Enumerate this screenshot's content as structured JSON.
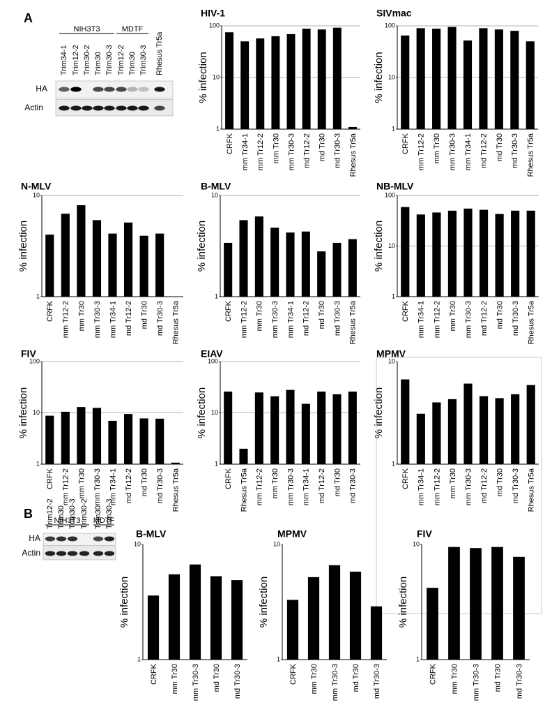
{
  "panel_labels": [
    "A",
    "B"
  ],
  "blots": [
    {
      "groups": [
        "NIH3T3",
        "MDTF"
      ],
      "lanes": [
        "Trim34-1",
        "Trim12-2",
        "Trim30-2",
        "Trim30",
        "Trim30-3",
        "Trim12-2",
        "Trim30",
        "Trim30-3",
        "Rhesus Tr5a"
      ],
      "rows": [
        "HA",
        "Actin"
      ]
    },
    {
      "groups": [
        "NIH3T3",
        "MDTF"
      ],
      "lanes": [
        "Trim12-2",
        "Trim30",
        "Trim30-3",
        "Trim30-2",
        "Trim30",
        "Trim30-3"
      ],
      "rows": [
        "HA",
        "Actin"
      ]
    }
  ],
  "chart_data": [
    {
      "type": "bar",
      "title": "HIV-1",
      "ylabel": "% infection",
      "log": true,
      "grid": true,
      "color": "#000000",
      "ylim": [
        1,
        100
      ],
      "yticks": [
        1,
        10,
        100
      ],
      "categories": [
        "CRFK",
        "mm Tr34-1",
        "mm Tr12-2",
        "mm Tr30",
        "mm Tr30-3",
        "md Tr12-2",
        "md Tr30",
        "md Tr30-3",
        "Rhesus Tr5a"
      ],
      "values": [
        75,
        50,
        57,
        63,
        69,
        88,
        85,
        92,
        1.1
      ]
    },
    {
      "type": "bar",
      "title": "SIVmac",
      "ylabel": "% infection",
      "log": true,
      "grid": true,
      "color": "#000000",
      "ylim": [
        1,
        100
      ],
      "yticks": [
        1,
        10,
        100
      ],
      "categories": [
        "CRFK",
        "mm Tr12-2",
        "mm Tr30",
        "mm Tr30-3",
        "mm Tr34-1",
        "md Tr12-2",
        "md Tr30",
        "md Tr30-3",
        "Rhesus Tr5a"
      ],
      "values": [
        65,
        90,
        88,
        95,
        52,
        90,
        85,
        80,
        50
      ]
    },
    {
      "type": "bar",
      "title": "N-MLV",
      "ylabel": "% infection",
      "log": true,
      "grid": true,
      "color": "#000000",
      "ylim": [
        1,
        10
      ],
      "yticks": [
        1,
        10
      ],
      "categories": [
        "CRFK",
        "mm Tr12-2",
        "mm Tr30",
        "mm Tr30-3",
        "mm Tr34-1",
        "md Tr12-2",
        "md Tr30",
        "md Tr30-3",
        "Rhesus Tr5a"
      ],
      "values": [
        4.1,
        6.6,
        8,
        5.7,
        4.2,
        5.4,
        4,
        4.2,
        1
      ]
    },
    {
      "type": "bar",
      "title": "B-MLV",
      "ylabel": "% infection",
      "log": true,
      "grid": true,
      "color": "#000000",
      "ylim": [
        1,
        10
      ],
      "yticks": [
        1,
        10
      ],
      "categories": [
        "CRFK",
        "mm Tr12-2",
        "mm Tr30",
        "mm Tr30-3",
        "mm Tr34-1",
        "md Tr12-2",
        "md Tr30",
        "md Tr30-3",
        "Rhesus Tr5a"
      ],
      "values": [
        3.4,
        5.7,
        6.2,
        4.8,
        4.3,
        4.4,
        2.8,
        3.4,
        3.7
      ]
    },
    {
      "type": "bar",
      "title": "NB-MLV",
      "ylabel": "% infection",
      "log": true,
      "grid": true,
      "color": "#000000",
      "ylim": [
        1,
        100
      ],
      "yticks": [
        1,
        10,
        100
      ],
      "categories": [
        "CRFK",
        "mm Tr34-1",
        "mm Tr12-2",
        "mm Tr30",
        "mm Tr30-3",
        "md Tr12-2",
        "md Tr30",
        "md Tr30-3",
        "Rhesus Tr5a"
      ],
      "values": [
        59,
        42,
        46,
        50,
        55,
        52,
        43,
        50,
        50
      ]
    },
    {
      "type": "bar",
      "title": "FIV",
      "ylabel": "% infection",
      "log": true,
      "grid": true,
      "color": "#000000",
      "ylim": [
        1,
        100
      ],
      "yticks": [
        1,
        10,
        100
      ],
      "categories": [
        "CRFK",
        "mm Tr12-2",
        "mm Tr30",
        "mm Tr30-3",
        "mm Tr34-1",
        "md Tr12-2",
        "md Tr30",
        "md Tr30-3",
        "Rhesus Tr5a"
      ],
      "values": [
        8.8,
        10.5,
        13,
        12.5,
        7,
        9.5,
        7.8,
        7.7,
        1.07
      ]
    },
    {
      "type": "bar",
      "title": "EIAV",
      "ylabel": "% infection",
      "log": true,
      "grid": true,
      "color": "#000000",
      "ylim": [
        1,
        100
      ],
      "yticks": [
        1,
        10,
        100
      ],
      "categories": [
        "CRFK",
        "Rhesus Tr5a",
        "mm Tr12-2",
        "mm Tr30",
        "mm Tr30-3",
        "mm Tr34-1",
        "md Tr12-2",
        "md Tr30",
        "md Tr30-3"
      ],
      "values": [
        26,
        2,
        25,
        21,
        28,
        15,
        26,
        23,
        26
      ]
    },
    {
      "type": "bar",
      "title": "MPMV",
      "ylabel": "% infection",
      "log": true,
      "grid": false,
      "color": "#000000",
      "ylim": [
        1,
        10
      ],
      "yticks": [
        1,
        10
      ],
      "categories": [
        "CRFK",
        "mm Tr34-1",
        "mm Tr12-2",
        "mm Tr30",
        "mm Tr30-3",
        "md Tr12-2",
        "md Tr30",
        "md Tr30-3",
        "Rhesus Tr5a"
      ],
      "values": [
        6.7,
        3.1,
        4,
        4.3,
        6.1,
        4.6,
        4.4,
        4.8,
        5.9
      ]
    },
    {
      "type": "bar",
      "title": "B-MLV",
      "ylabel": "% infection",
      "log": true,
      "grid": false,
      "color": "#000000",
      "ylim": [
        1,
        10
      ],
      "yticks": [
        1,
        10
      ],
      "categories": [
        "CRFK",
        "mm Tr30",
        "mm Tr30-3",
        "md Tr30",
        "md Tr30-3"
      ],
      "values": [
        3.6,
        5.5,
        6.7,
        5.3,
        4.9
      ]
    },
    {
      "type": "bar",
      "title": "MPMV",
      "ylabel": "% infection",
      "log": true,
      "grid": false,
      "color": "#000000",
      "ylim": [
        1,
        10
      ],
      "yticks": [
        1,
        10
      ],
      "categories": [
        "CRFK",
        "mm Tr30",
        "mm Tr30-3",
        "md Tr30",
        "md Tr30-3"
      ],
      "values": [
        3.3,
        5.2,
        6.6,
        5.8,
        2.9
      ]
    },
    {
      "type": "bar",
      "title": "FIV",
      "ylabel": "% infection",
      "log": true,
      "grid": false,
      "color": "#000000",
      "ylim": [
        1,
        10
      ],
      "yticks": [
        1,
        10
      ],
      "categories": [
        "CRFK",
        "mm Tr30",
        "mm Tr30-3",
        "md Tr30",
        "md Tr30-3"
      ],
      "values": [
        4.2,
        9.5,
        9.3,
        9.5,
        7.8
      ]
    }
  ]
}
